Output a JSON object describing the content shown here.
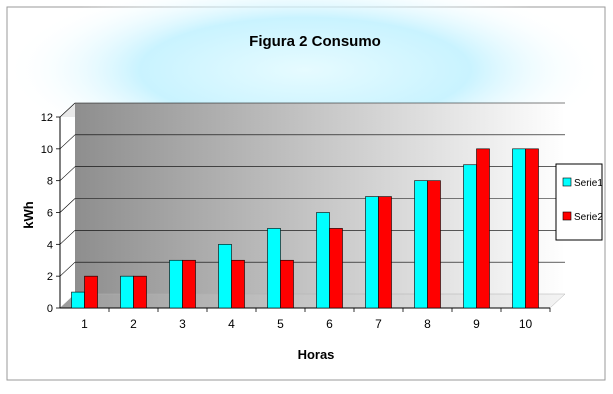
{
  "chart_data": {
    "type": "bar",
    "title": "Figura 2 Consumo",
    "xlabel": "Horas",
    "ylabel": "kWh",
    "categories": [
      "1",
      "2",
      "3",
      "4",
      "5",
      "6",
      "7",
      "8",
      "9",
      "10"
    ],
    "series": [
      {
        "name": "Serie1",
        "color": "#00ffff",
        "values": [
          1,
          2,
          3,
          4,
          5,
          6,
          7,
          8,
          9,
          10
        ]
      },
      {
        "name": "Serie2",
        "color": "#ff0000",
        "values": [
          2,
          2,
          3,
          3,
          3,
          5,
          7,
          8,
          10,
          10
        ]
      }
    ],
    "yticks": [
      "0",
      "2",
      "4",
      "6",
      "8",
      "10",
      "12"
    ],
    "ylim": [
      0,
      12
    ],
    "grid": true,
    "legend": "right"
  }
}
